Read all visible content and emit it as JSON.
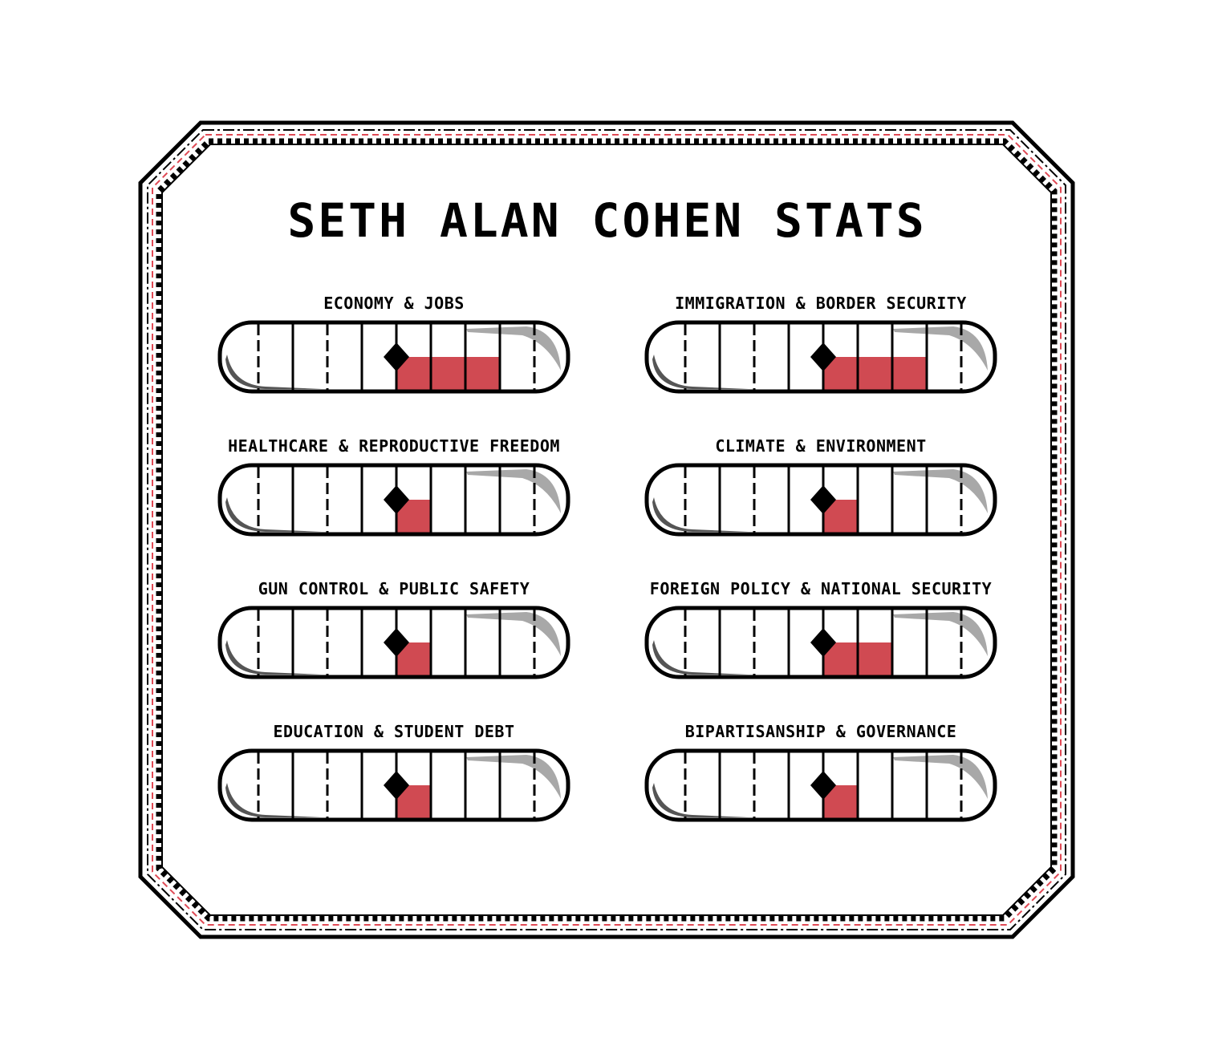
{
  "title": "SETH ALAN COHEN STATS",
  "colors": {
    "fill": "#d04a52",
    "border": "#000000",
    "accent_stitch": "#e04a55",
    "shadow_dark": "#555555",
    "shadow_light": "#a8a8a8"
  },
  "scale": {
    "segments": 10,
    "center_marker": 5,
    "marker_icon": "diamond-marker-icon"
  },
  "stats": [
    {
      "label": "ECONOMY & JOBS",
      "level": 3
    },
    {
      "label": "IMMIGRATION & BORDER SECURITY",
      "level": 3
    },
    {
      "label": "HEALTHCARE & REPRODUCTIVE FREEDOM",
      "level": 1
    },
    {
      "label": "CLIMATE & ENVIRONMENT",
      "level": 1
    },
    {
      "label": "GUN CONTROL & PUBLIC SAFETY",
      "level": 1
    },
    {
      "label": "FOREIGN POLICY & NATIONAL SECURITY",
      "level": 2
    },
    {
      "label": "EDUCATION & STUDENT DEBT",
      "level": 1
    },
    {
      "label": "BIPARTISANSHIP & GOVERNANCE",
      "level": 1
    }
  ]
}
